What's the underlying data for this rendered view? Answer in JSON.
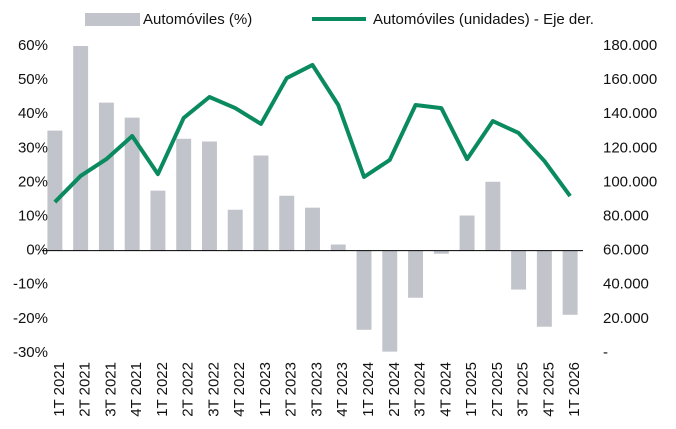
{
  "chart_data": {
    "type": "bar_line",
    "categories": [
      "1T 2021",
      "2T 2021",
      "3T 2021",
      "4T 2021",
      "1T 2022",
      "2T 2022",
      "3T 2022",
      "4T 2022",
      "1T 2023",
      "2T 2023",
      "3T 2023",
      "4T 2023",
      "1T 2024",
      "2T 2024",
      "3T 2024",
      "4T 2024",
      "1T 2025",
      "2T 2025",
      "3T 2025",
      "4T 2025",
      "1T 2026"
    ],
    "series": [
      {
        "name": "Automóviles (%)",
        "type": "bar",
        "color": "#c1c4cb",
        "values": [
          35.2,
          60,
          43.4,
          39,
          17.6,
          32.8,
          32,
          12,
          27.9,
          16.1,
          12.6,
          1.8,
          -23.2,
          -29.6,
          -13.8,
          -0.9,
          10.3,
          20.2,
          -11.4,
          -22.3,
          -18.8
        ]
      },
      {
        "name": "Automóviles (unidades) - Eje der.",
        "type": "line",
        "axis": "y2",
        "color": "#0a8a5f",
        "values": [
          88500,
          103800,
          113700,
          127200,
          104900,
          137800,
          150100,
          143600,
          134300,
          161200,
          168900,
          145400,
          103200,
          113200,
          145400,
          143600,
          113700,
          136000,
          129000,
          112600,
          92000
        ]
      }
    ],
    "ylim": [
      -30,
      60
    ],
    "yticks": [
      {
        "value": -30,
        "label": "-30%"
      },
      {
        "value": -20,
        "label": "-20%"
      },
      {
        "value": -10,
        "label": "-10%"
      },
      {
        "value": 0,
        "label": "0%"
      },
      {
        "value": 10,
        "label": "10%"
      },
      {
        "value": 20,
        "label": "20%"
      },
      {
        "value": 30,
        "label": "30%"
      },
      {
        "value": 40,
        "label": "40%"
      },
      {
        "value": 50,
        "label": "50%"
      },
      {
        "value": 60,
        "label": "60%"
      }
    ],
    "y2lim": [
      0,
      180000
    ],
    "y2ticks": [
      {
        "value": 0,
        "label": "-"
      },
      {
        "value": 20000,
        "label": "20.000"
      },
      {
        "value": 40000,
        "label": "40.000"
      },
      {
        "value": 60000,
        "label": "60.000"
      },
      {
        "value": 80000,
        "label": "80.000"
      },
      {
        "value": 100000,
        "label": "100.000"
      },
      {
        "value": 120000,
        "label": "120.000"
      },
      {
        "value": 140000,
        "label": "140.000"
      },
      {
        "value": 160000,
        "label": "160.000"
      },
      {
        "value": 180000,
        "label": "180.000"
      }
    ],
    "legend": "top"
  }
}
